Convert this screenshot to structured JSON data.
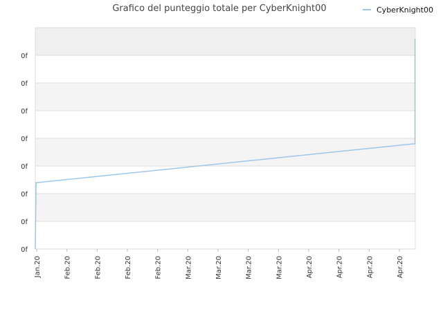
{
  "chart_data": {
    "type": "line",
    "title": "Grafico del punteggio totale per CyberKnight00",
    "legend": {
      "position": "top-right"
    },
    "y_tick_labels": [
      "0f",
      "0f",
      "0f",
      "0f",
      "0f",
      "0f",
      "0f",
      "0f"
    ],
    "x_tick_labels": [
      "Jan.20",
      "Feb.20",
      "Feb.20",
      "Feb.20",
      "Feb.20",
      "Mar.20",
      "Mar.20",
      "Mar.20",
      "Mar.20",
      "Apr.20",
      "Apr.20",
      "Apr.20",
      "Apr.20"
    ],
    "ylim": [
      0,
      8
    ],
    "grid": true,
    "series": [
      {
        "name": "CyberKnight00",
        "color": "#9cc7ea",
        "x": [
          0,
          0.002,
          0.005,
          0.994,
          0.999,
          0.999
        ],
        "y": [
          0,
          2.4,
          2.4,
          3.8,
          3.8,
          7.6
        ]
      }
    ]
  },
  "colors": {
    "band_dark": "#efefef",
    "band_light": "#f4f4f4",
    "band_white": "#ffffff",
    "grid": "#dddddd",
    "line": "#9cc7ea"
  }
}
